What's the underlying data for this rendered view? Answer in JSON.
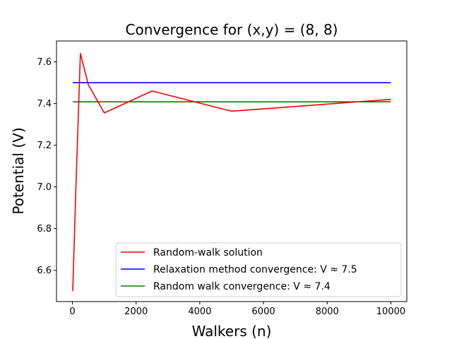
{
  "chart_data": {
    "type": "line",
    "title": "Convergence for (x,y) = (8, 8)",
    "xlabel": "Walkers (n)",
    "ylabel": "Potential (V)",
    "xlim": [
      -500,
      10500
    ],
    "ylim": [
      6.45,
      7.7
    ],
    "xticks": [
      0,
      2000,
      4000,
      6000,
      8000,
      10000
    ],
    "xtick_labels": [
      "0",
      "2000",
      "4000",
      "6000",
      "8000",
      "10000"
    ],
    "yticks": [
      6.6,
      6.8,
      7.0,
      7.2,
      7.4,
      7.6
    ],
    "ytick_labels": [
      "6.6",
      "6.8",
      "7.0",
      "7.2",
      "7.4",
      "7.6"
    ],
    "grid": false,
    "legend_location": "lower-right",
    "series": [
      {
        "name": "Random-walk solution",
        "color": "#ff0000",
        "x": [
          10,
          100,
          250,
          500,
          1000,
          2500,
          5000,
          10000
        ],
        "y": [
          6.5,
          6.95,
          7.64,
          7.49,
          7.355,
          7.46,
          7.363,
          7.42
        ]
      },
      {
        "name": "Relaxation method convergence: V ≈ 7.5",
        "color": "#0000ff",
        "x": [
          10,
          10000
        ],
        "y": [
          7.5,
          7.5
        ]
      },
      {
        "name": "Random walk convergence:  V ≈ 7.4",
        "color": "#008000",
        "x": [
          10,
          10000
        ],
        "y": [
          7.408,
          7.408
        ]
      }
    ]
  }
}
